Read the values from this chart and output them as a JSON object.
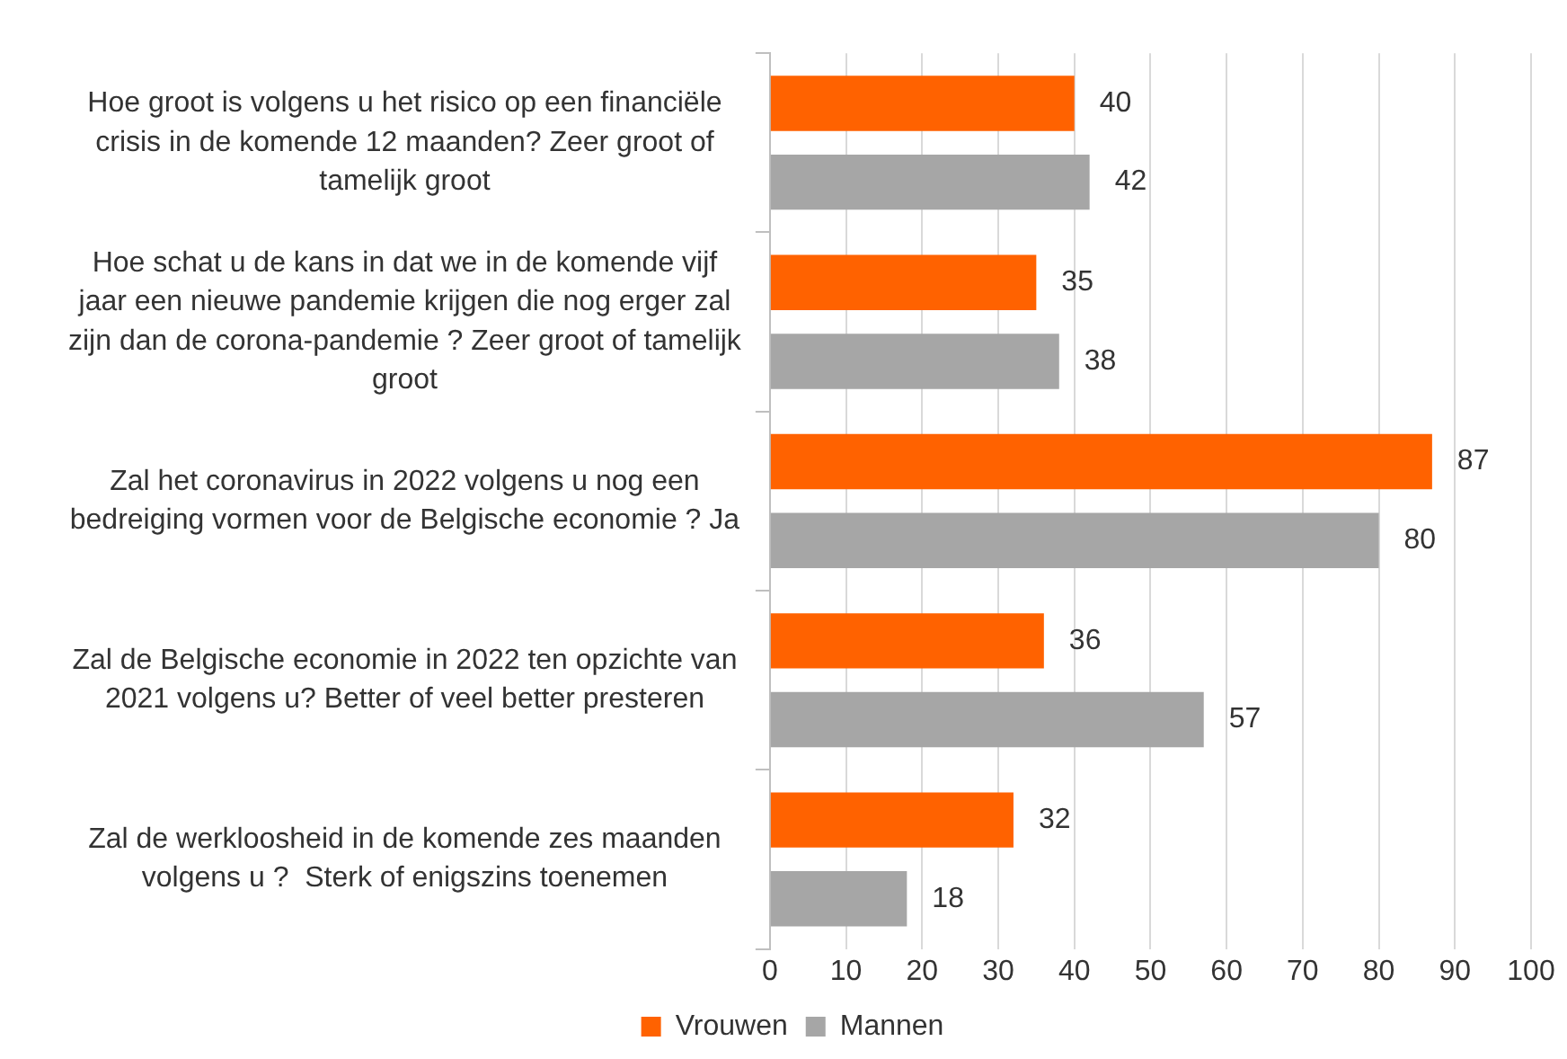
{
  "chart_data": {
    "type": "bar",
    "orientation": "horizontal",
    "categories": [
      "Hoe groot is volgens u het risico op een financiële crisis in de komende 12 maanden? Zeer groot of tamelijk groot",
      "Hoe schat u de kans in dat we in de komende vijf jaar een nieuwe pandemie krijgen die nog erger zal zijn dan de corona-pandemie ? Zeer groot of tamelijk groot",
      "Zal het coronavirus in 2022 volgens u nog een bedreiging vormen voor de Belgische economie ? Ja",
      "Zal de Belgische economie in 2022 ten opzichte van 2021 volgens u? Better of veel better presteren",
      "Zal de werkloosheid in de komende zes maanden volgens u ?  Sterk of enigszins toenemen"
    ],
    "series": [
      {
        "name": "Vrouwen",
        "color": "#ff6200",
        "values": [
          40,
          35,
          87,
          36,
          32
        ]
      },
      {
        "name": "Mannen",
        "color": "#a6a6a6",
        "values": [
          42,
          38,
          80,
          57,
          18
        ]
      }
    ],
    "xlim": [
      0,
      100
    ],
    "xticks": [
      0,
      10,
      20,
      30,
      40,
      50,
      60,
      70,
      80,
      90,
      100
    ],
    "grid": "x",
    "legend": "bottom",
    "data_labels": true
  }
}
